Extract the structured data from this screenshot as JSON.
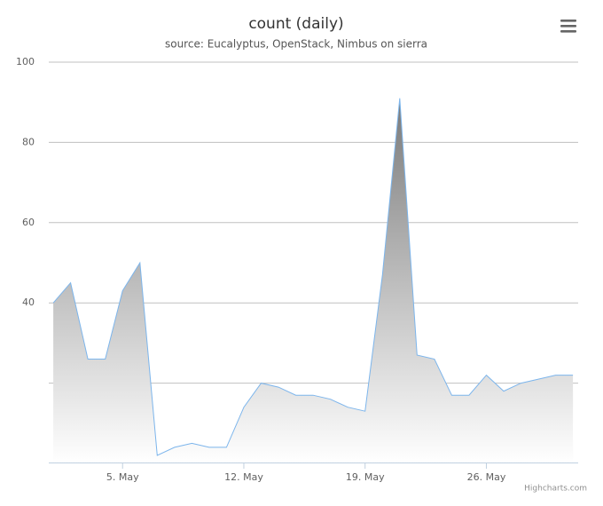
{
  "chart_data": {
    "type": "area",
    "title": "count (daily)",
    "subtitle": "source: Eucalyptus, OpenStack, Nimbus on sierra",
    "credits": "Highcharts.com",
    "x": [
      1,
      2,
      3,
      4,
      5,
      6,
      7,
      8,
      9,
      10,
      11,
      12,
      13,
      14,
      15,
      16,
      17,
      18,
      19,
      20,
      21,
      22,
      23,
      24,
      25,
      26,
      27,
      28,
      29,
      30,
      31
    ],
    "series": [
      {
        "color": "#7cb5ec",
        "values": [
          40,
          45,
          26,
          26,
          43,
          50,
          2,
          4,
          5,
          4,
          4,
          14,
          20,
          19,
          17,
          17,
          16,
          14,
          13,
          47,
          91,
          27,
          26,
          17,
          17,
          22,
          18,
          20,
          21,
          22,
          22
        ]
      }
    ],
    "xlim": [
      0.74,
      31.3
    ],
    "xticks": [
      {
        "value": 5,
        "label": "5. May"
      },
      {
        "value": 12,
        "label": "12. May"
      },
      {
        "value": 19,
        "label": "19. May"
      },
      {
        "value": 26,
        "label": "26. May"
      }
    ],
    "ylim": [
      0,
      100
    ],
    "yticks": [
      {
        "value": 20,
        "label": null
      },
      40,
      60,
      80,
      100
    ],
    "grid": true
  }
}
